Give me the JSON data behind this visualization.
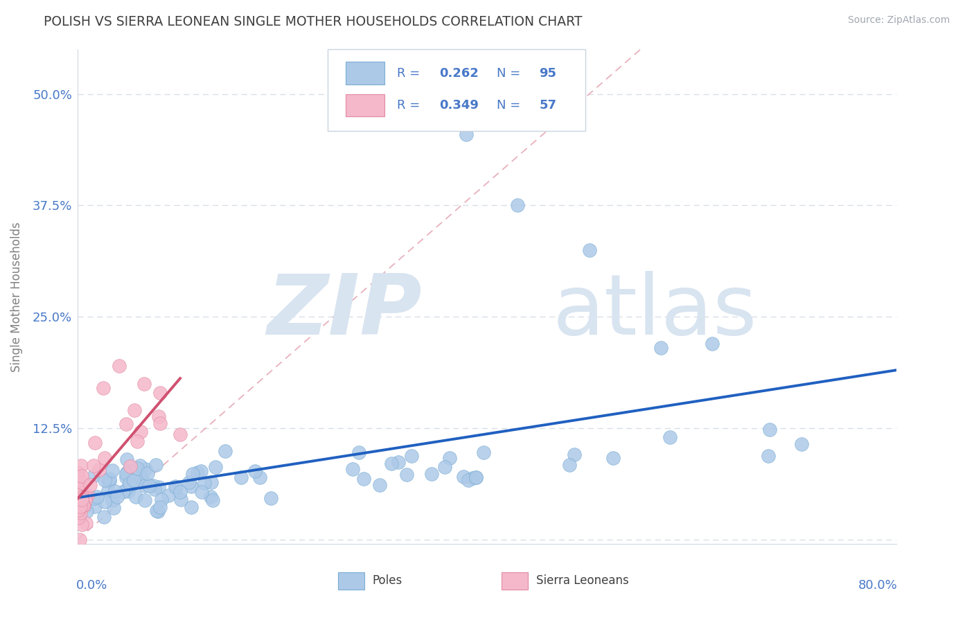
{
  "title": "POLISH VS SIERRA LEONEAN SINGLE MOTHER HOUSEHOLDS CORRELATION CHART",
  "source": "Source: ZipAtlas.com",
  "ylabel": "Single Mother Households",
  "xlim": [
    0.0,
    0.8
  ],
  "ylim": [
    -0.005,
    0.55
  ],
  "yticks": [
    0.0,
    0.125,
    0.25,
    0.375,
    0.5
  ],
  "ytick_labels": [
    "",
    "12.5%",
    "25.0%",
    "37.5%",
    "50.0%"
  ],
  "poles_R": 0.262,
  "poles_N": 95,
  "sierra_R": 0.349,
  "sierra_N": 57,
  "poles_scatter_color": "#adc9e8",
  "poles_edge_color": "#7aadd4",
  "poles_line_color": "#2060c0",
  "sierra_scatter_color": "#f5b8cb",
  "sierra_edge_color": "#e08aa0",
  "sierra_line_color": "#d05070",
  "ref_line_color": "#e8b0bc",
  "grid_color": "#d8dfe8",
  "title_color": "#404040",
  "legend_text_color": "#4878c8",
  "yaxis_color": "#4878c8",
  "watermark_zip": "ZIP",
  "watermark_atlas": "atlas",
  "watermark_color": "#d8e4f0",
  "background_color": "#ffffff",
  "source_color": "#a0a8b0",
  "bottom_legend_text_color": "#404040",
  "poles_seed": 42,
  "sierra_seed": 99
}
